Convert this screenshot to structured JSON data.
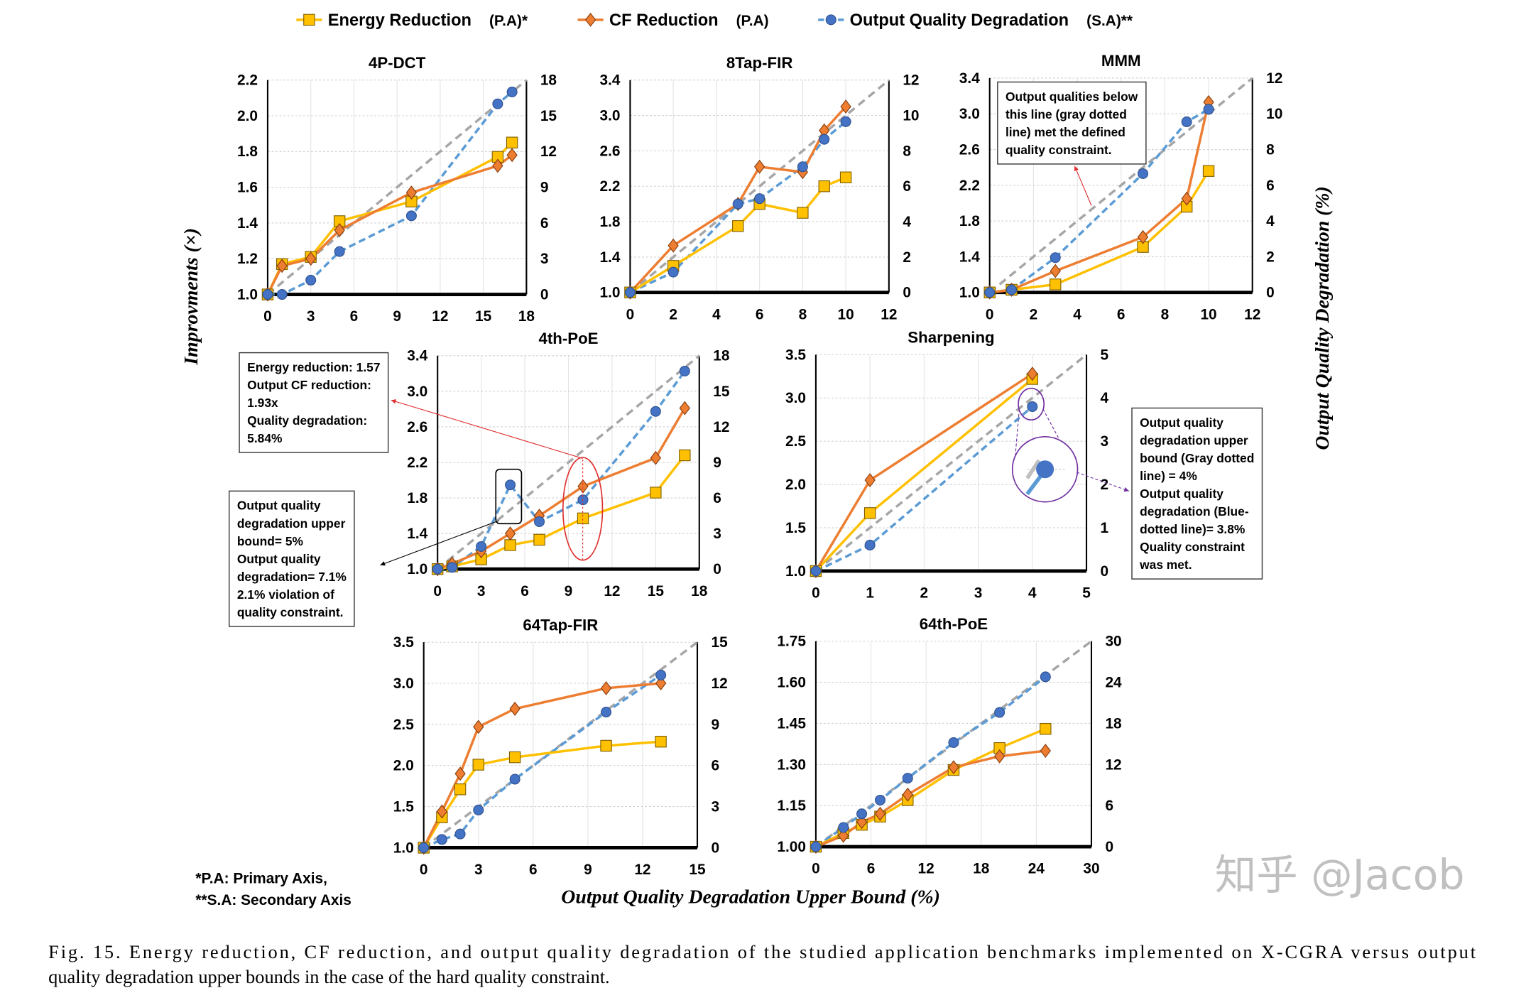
{
  "legend": [
    {
      "label": "Energy Reduction",
      "axis": "(P.A)*",
      "color": "#FFC000",
      "marker": "square"
    },
    {
      "label": "CF Reduction",
      "axis": "(P.A)",
      "color": "#ED7D31",
      "marker": "diamond"
    },
    {
      "label": "Output Quality Degradation",
      "axis": "(S.A)**",
      "color": "#4472C4",
      "marker": "circle"
    }
  ],
  "y_left_label": "Improvments (×)",
  "y_right_label": "Output Quality Degradation (%)",
  "x_label": "Output Quality Degradation Upper Bound (%)",
  "footnotes": [
    "*P.A: Primary Axis,",
    "**S.A: Secondary Axis"
  ],
  "caption": [
    "Fig. 15.    Energy reduction, CF reduction, and output quality degradation of the studied application benchmarks implemented on X-CGRA versus output",
    "quality degradation upper bounds in the case of the hard quality constraint."
  ],
  "watermark": "知乎 @Jacob",
  "colors": {
    "energy": "#FFC000",
    "cf": "#ED7D31",
    "quality": "#5B9BD5",
    "bound": "#A6A6A6"
  },
  "annotations": {
    "mmm_note": [
      "Output qualities below",
      "this line (gray dotted",
      "line) met the defined",
      "quality constraint."
    ],
    "poe_note": [
      "Energy reduction: 1.57",
      "Output CF reduction:",
      "1.93x",
      "Quality degradation:",
      "5.84%"
    ],
    "poe_violation": [
      "Output quality",
      "degradation upper",
      "bound= 5%",
      "Output quality",
      "degradation= 7.1%",
      "2.1% violation of",
      "quality constraint."
    ],
    "sharp_note": [
      "Output quality",
      "degradation upper",
      "bound (Gray dotted",
      "line) = 4%",
      "Output quality",
      "degradation (Blue-",
      "dotted line)= 3.8%",
      "Quality constraint",
      "was met."
    ]
  },
  "chart_data": [
    {
      "type": "line",
      "title": "4P-DCT",
      "xlim": [
        0,
        18
      ],
      "xticks": [
        0,
        3,
        6,
        9,
        12,
        15,
        18
      ],
      "ylim": [
        1.0,
        2.2
      ],
      "yticks": [
        "1.0",
        "1.2",
        "1.4",
        "1.6",
        "1.8",
        "2.0",
        "2.2"
      ],
      "y2lim": [
        0,
        18
      ],
      "y2ticks": [
        0,
        3,
        6,
        9,
        12,
        15,
        18
      ],
      "x": [
        0,
        1,
        3,
        5,
        10,
        16,
        17
      ],
      "energy": [
        1.0,
        1.17,
        1.21,
        1.41,
        1.52,
        1.77,
        1.85
      ],
      "cf": [
        1.0,
        1.16,
        1.2,
        1.36,
        1.57,
        1.72,
        1.78
      ],
      "quality": [
        0,
        0,
        1.2,
        3.6,
        6.6,
        16.0,
        17.0
      ]
    },
    {
      "type": "line",
      "title": "8Tap-FIR",
      "xlim": [
        0,
        12
      ],
      "xticks": [
        0,
        2,
        4,
        6,
        8,
        10,
        12
      ],
      "ylim": [
        1.0,
        3.4
      ],
      "yticks": [
        "1.0",
        "1.4",
        "1.8",
        "2.2",
        "2.6",
        "3.0",
        "3.4"
      ],
      "y2lim": [
        0,
        12
      ],
      "y2ticks": [
        0,
        2,
        4,
        6,
        8,
        10,
        12
      ],
      "x": [
        0,
        2,
        5,
        6,
        8,
        9,
        10
      ],
      "energy": [
        1.0,
        1.3,
        1.75,
        2.0,
        1.9,
        2.2,
        2.3
      ],
      "cf": [
        1.0,
        1.53,
        2.0,
        2.42,
        2.36,
        2.83,
        3.1
      ],
      "quality": [
        0,
        1.15,
        5.0,
        5.3,
        7.1,
        8.65,
        9.65
      ]
    },
    {
      "type": "line",
      "title": "MMM",
      "xlim": [
        0,
        12
      ],
      "xticks": [
        0,
        2,
        4,
        6,
        8,
        10,
        12
      ],
      "ylim": [
        1.0,
        3.4
      ],
      "yticks": [
        "1.0",
        "1.4",
        "1.8",
        "2.2",
        "2.6",
        "3.0",
        "3.4"
      ],
      "y2lim": [
        0,
        12
      ],
      "y2ticks": [
        0,
        2,
        4,
        6,
        8,
        10,
        12
      ],
      "x": [
        0,
        1,
        3,
        7,
        9,
        10
      ],
      "energy": [
        1.0,
        1.03,
        1.09,
        1.51,
        1.96,
        2.36
      ],
      "cf": [
        1.0,
        1.03,
        1.24,
        1.62,
        2.05,
        3.13
      ],
      "quality": [
        0,
        0.15,
        1.95,
        6.65,
        9.55,
        10.25
      ]
    },
    {
      "type": "line",
      "title": "4th-PoE",
      "xlim": [
        0,
        18
      ],
      "xticks": [
        0,
        3,
        6,
        9,
        12,
        15,
        18
      ],
      "ylim": [
        1.0,
        3.4
      ],
      "yticks": [
        "1.0",
        "1.4",
        "1.8",
        "2.2",
        "2.6",
        "3.0",
        "3.4"
      ],
      "y2lim": [
        0,
        18
      ],
      "y2ticks": [
        0,
        3,
        6,
        9,
        12,
        15,
        18
      ],
      "x": [
        0,
        1,
        3,
        5,
        7,
        10,
        15,
        17
      ],
      "energy": [
        1.0,
        1.03,
        1.11,
        1.27,
        1.33,
        1.57,
        1.86,
        2.28
      ],
      "cf": [
        1.0,
        1.06,
        1.2,
        1.4,
        1.6,
        1.93,
        2.25,
        2.81
      ],
      "quality": [
        0,
        0.15,
        1.9,
        7.1,
        4.0,
        5.84,
        13.3,
        16.7
      ]
    },
    {
      "type": "line",
      "title": "Sharpening",
      "xlim": [
        0,
        5
      ],
      "xticks": [
        0,
        1,
        2,
        3,
        4,
        5
      ],
      "ylim": [
        1.0,
        3.5
      ],
      "yticks": [
        "1.0",
        "1.5",
        "2.0",
        "2.5",
        "3.0",
        "3.5"
      ],
      "y2lim": [
        0,
        5
      ],
      "y2ticks": [
        0,
        1,
        2,
        3,
        4,
        5
      ],
      "x": [
        0,
        1,
        4
      ],
      "energy": [
        1.0,
        1.67,
        3.22
      ],
      "cf": [
        1.0,
        2.05,
        3.28
      ],
      "quality": [
        0,
        0.6,
        3.8
      ]
    },
    {
      "type": "line",
      "title": "64Tap-FIR",
      "xlim": [
        0,
        15
      ],
      "xticks": [
        0,
        3,
        6,
        9,
        12,
        15
      ],
      "ylim": [
        1.0,
        3.5
      ],
      "yticks": [
        "1.0",
        "1.5",
        "2.0",
        "2.5",
        "3.0",
        "3.5"
      ],
      "y2lim": [
        0,
        15
      ],
      "y2ticks": [
        0,
        3,
        6,
        9,
        12,
        15
      ],
      "x": [
        0,
        1,
        2,
        3,
        5,
        10,
        13
      ],
      "energy": [
        1.0,
        1.37,
        1.71,
        2.01,
        2.1,
        2.24,
        2.29
      ],
      "cf": [
        1.0,
        1.44,
        1.9,
        2.47,
        2.69,
        2.94,
        3.0
      ],
      "quality": [
        0,
        0.6,
        1.0,
        2.75,
        5.0,
        9.9,
        12.6
      ]
    },
    {
      "type": "line",
      "title": "64th-PoE",
      "xlim": [
        0,
        30
      ],
      "xticks": [
        0,
        6,
        12,
        18,
        24,
        30
      ],
      "ylim": [
        1.0,
        1.75
      ],
      "yticks": [
        "1.00",
        "1.15",
        "1.30",
        "1.45",
        "1.60",
        "1.75"
      ],
      "y2lim": [
        0,
        30
      ],
      "y2ticks": [
        0,
        6,
        12,
        18,
        24,
        30
      ],
      "x": [
        0,
        3,
        5,
        7,
        10,
        15,
        20,
        25
      ],
      "energy": [
        1.0,
        1.05,
        1.08,
        1.11,
        1.17,
        1.28,
        1.36,
        1.43
      ],
      "cf": [
        1.0,
        1.04,
        1.09,
        1.12,
        1.19,
        1.29,
        1.33,
        1.35
      ],
      "quality": [
        0,
        2.8,
        4.8,
        6.8,
        10.0,
        15.2,
        19.6,
        24.8
      ]
    }
  ]
}
